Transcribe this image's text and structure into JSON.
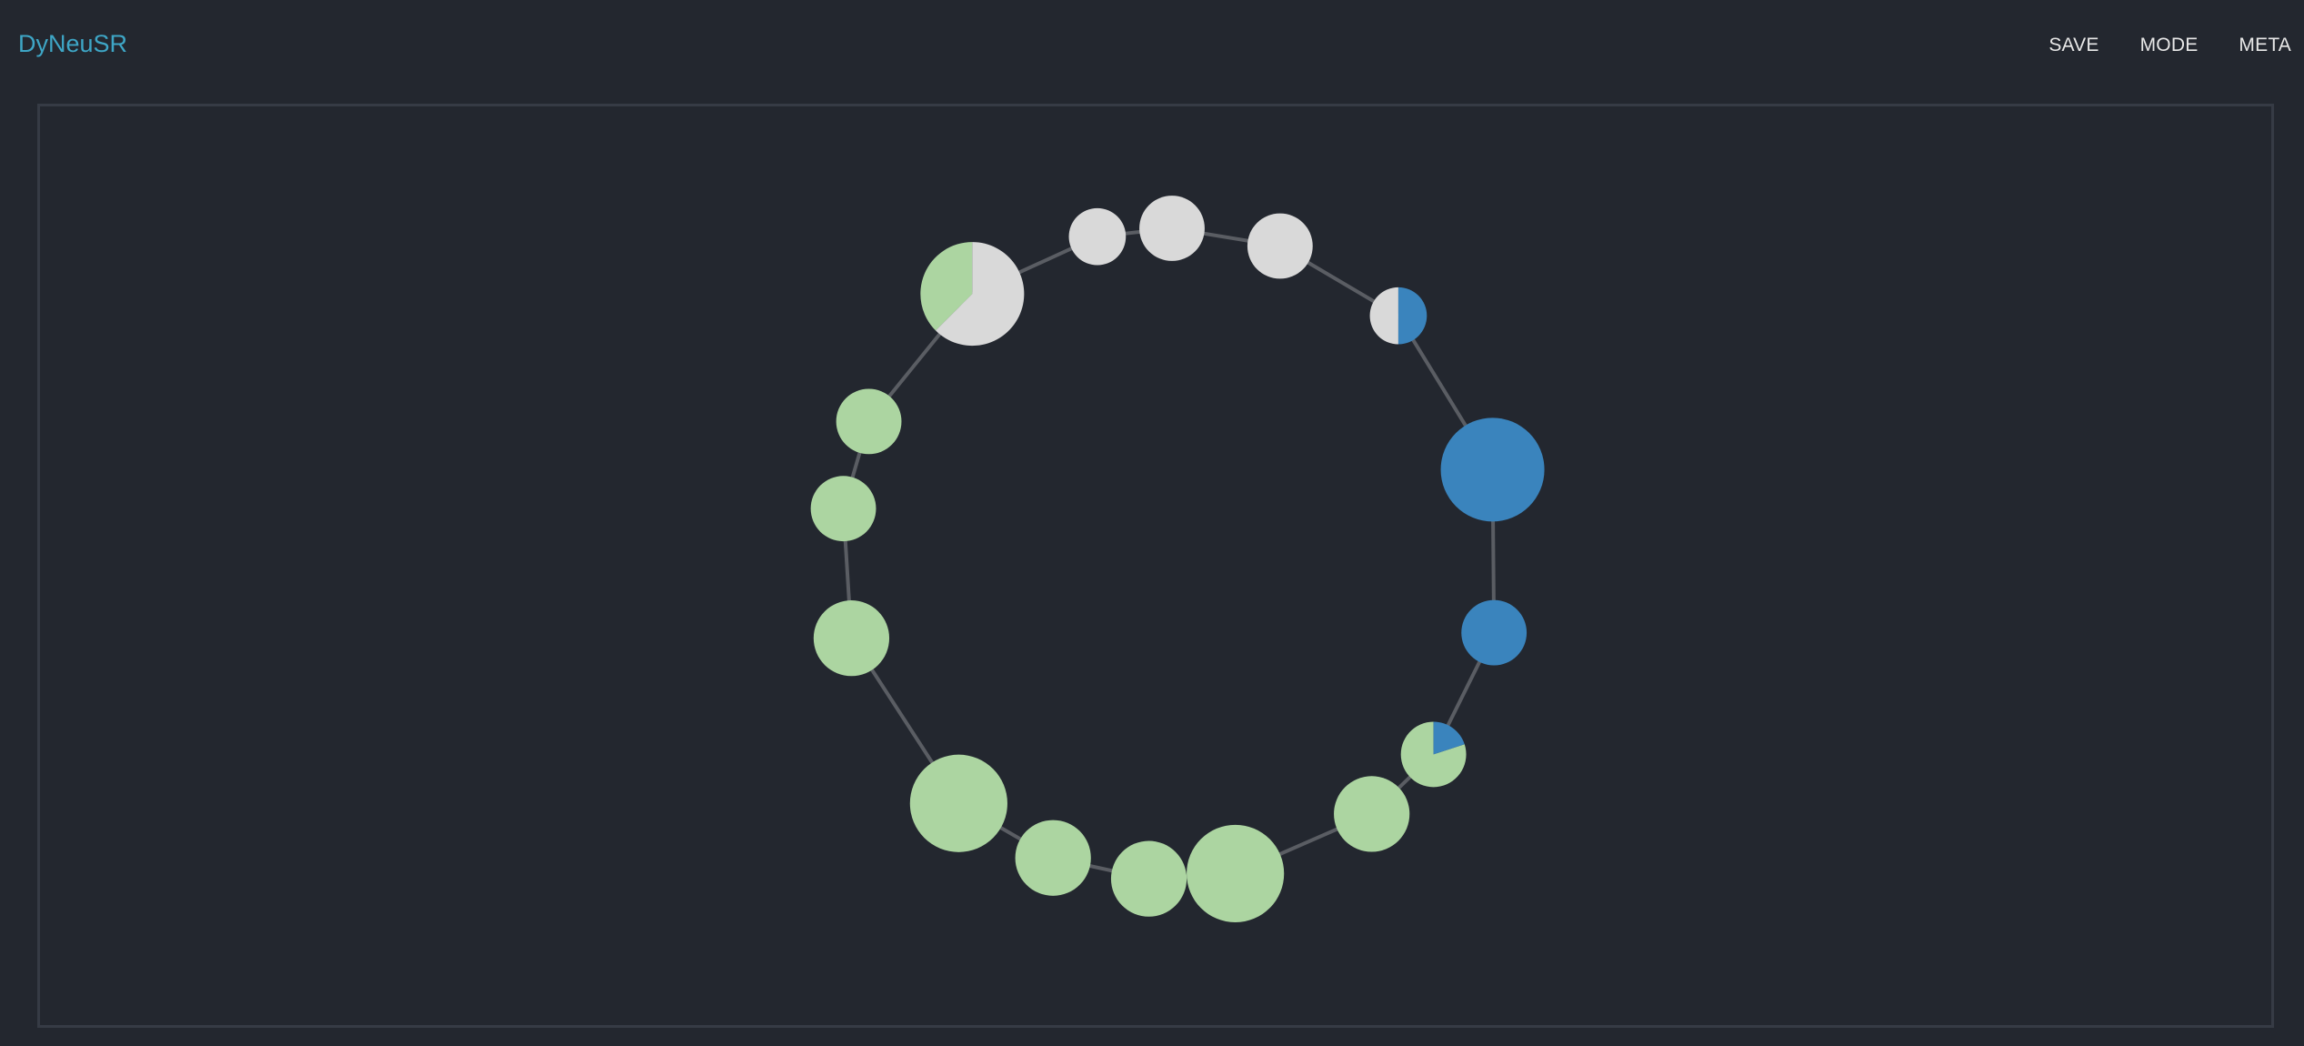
{
  "app": {
    "brand": "DyNeuSR"
  },
  "nav": {
    "items": [
      "SAVE",
      "MODE",
      "META"
    ]
  },
  "colors": {
    "background": "#23272f",
    "frame": "#363b45",
    "brand": "#3ea6c6",
    "edge": "#5a5d63",
    "green": "#acd5a1",
    "gray": "#d9d9d9",
    "blue": "#3a84bd"
  },
  "graph": {
    "layout": "ring",
    "nodes": [
      {
        "id": "n0",
        "size": 1.0,
        "composition": [
          {
            "color": "green",
            "fraction": 0.375
          },
          {
            "color": "gray",
            "fraction": 0.625
          }
        ]
      },
      {
        "id": "n1",
        "size": 0.55,
        "composition": [
          {
            "color": "gray",
            "fraction": 1.0
          }
        ]
      },
      {
        "id": "n2",
        "size": 0.63,
        "composition": [
          {
            "color": "gray",
            "fraction": 1.0
          }
        ]
      },
      {
        "id": "n3",
        "size": 0.63,
        "composition": [
          {
            "color": "gray",
            "fraction": 1.0
          }
        ]
      },
      {
        "id": "n4",
        "size": 0.55,
        "composition": [
          {
            "color": "gray",
            "fraction": 0.5
          },
          {
            "color": "blue",
            "fraction": 0.5
          }
        ]
      },
      {
        "id": "n5",
        "size": 1.0,
        "composition": [
          {
            "color": "blue",
            "fraction": 1.0
          }
        ]
      },
      {
        "id": "n6",
        "size": 0.63,
        "composition": [
          {
            "color": "blue",
            "fraction": 1.0
          }
        ]
      },
      {
        "id": "n7",
        "size": 0.63,
        "composition": [
          {
            "color": "green",
            "fraction": 0.8
          },
          {
            "color": "blue",
            "fraction": 0.2
          }
        ]
      },
      {
        "id": "n8",
        "size": 0.73,
        "composition": [
          {
            "color": "green",
            "fraction": 1.0
          }
        ]
      },
      {
        "id": "n9",
        "size": 0.94,
        "composition": [
          {
            "color": "green",
            "fraction": 1.0
          }
        ]
      },
      {
        "id": "n10",
        "size": 0.73,
        "composition": [
          {
            "color": "green",
            "fraction": 1.0
          }
        ]
      },
      {
        "id": "n11",
        "size": 0.73,
        "composition": [
          {
            "color": "green",
            "fraction": 1.0
          }
        ]
      },
      {
        "id": "n12",
        "size": 0.94,
        "composition": [
          {
            "color": "green",
            "fraction": 1.0
          }
        ]
      },
      {
        "id": "n13",
        "size": 0.73,
        "composition": [
          {
            "color": "green",
            "fraction": 1.0
          }
        ]
      },
      {
        "id": "n14",
        "size": 0.63,
        "composition": [
          {
            "color": "green",
            "fraction": 1.0
          }
        ]
      },
      {
        "id": "n15",
        "size": 0.63,
        "composition": [
          {
            "color": "green",
            "fraction": 1.0
          }
        ]
      }
    ],
    "edges": [
      [
        "n0",
        "n1"
      ],
      [
        "n1",
        "n2"
      ],
      [
        "n2",
        "n3"
      ],
      [
        "n3",
        "n4"
      ],
      [
        "n4",
        "n5"
      ],
      [
        "n5",
        "n6"
      ],
      [
        "n6",
        "n7"
      ],
      [
        "n7",
        "n8"
      ],
      [
        "n8",
        "n9"
      ],
      [
        "n9",
        "n10"
      ],
      [
        "n10",
        "n11"
      ],
      [
        "n11",
        "n12"
      ],
      [
        "n12",
        "n13"
      ],
      [
        "n13",
        "n14"
      ],
      [
        "n14",
        "n15"
      ],
      [
        "n15",
        "n0"
      ]
    ]
  }
}
